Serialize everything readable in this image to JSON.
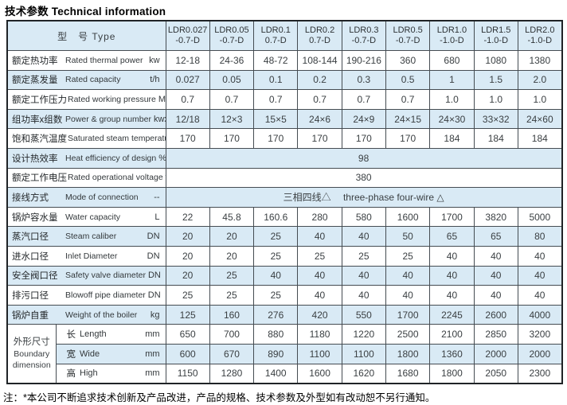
{
  "title": "技术参数 Technical information",
  "colors": {
    "row_tint": "#d9eaf5",
    "grid_border": "#454c52",
    "outer_border": "#1f2326",
    "text": "#3a3f42"
  },
  "table": {
    "type_header": "型　号  Type",
    "models": [
      {
        "line1": "LDR0.027",
        "line2": "-0.7-D"
      },
      {
        "line1": "LDR0.05",
        "line2": "-0.7-D"
      },
      {
        "line1": "LDR0.1",
        "line2": "0.7-D"
      },
      {
        "line1": "LDR0.2",
        "line2": "0.7-D"
      },
      {
        "line1": "LDR0.3",
        "line2": "-0.7-D"
      },
      {
        "line1": "LDR0.5",
        "line2": "-0.7-D"
      },
      {
        "line1": "LDR1.0",
        "line2": "-1.0-D"
      },
      {
        "line1": "LDR1.5",
        "line2": "-1.0-D"
      },
      {
        "line1": "LDR2.0",
        "line2": "-1.0-D"
      }
    ],
    "rows": [
      {
        "cn": "额定热功率",
        "en": "Rated thermal power",
        "unit": "kw",
        "values": [
          "12-18",
          "24-36",
          "48-72",
          "108-144",
          "190-216",
          "360",
          "680",
          "1080",
          "1380"
        ]
      },
      {
        "cn": "额定蒸发量",
        "en": "Rated capacity",
        "unit": "t/h",
        "values": [
          "0.027",
          "0.05",
          "0.1",
          "0.2",
          "0.3",
          "0.5",
          "1",
          "1.5",
          "2.0"
        ]
      },
      {
        "cn": "额定工作压力",
        "en": "Rated working pressure",
        "unit": "Mpa",
        "values": [
          "0.7",
          "0.7",
          "0.7",
          "0.7",
          "0.7",
          "0.7",
          "1.0",
          "1.0",
          "1.0"
        ]
      },
      {
        "cn": "组功率x组数",
        "en": "Power & group number",
        "unit": "kwxn",
        "values": [
          "12/18",
          "12×3",
          "15×5",
          "24×6",
          "24×9",
          "24×15",
          "24×30",
          "33×32",
          "24×60"
        ]
      },
      {
        "cn": "饱和蒸汽温度",
        "en": "Saturated steam temperature",
        "unit": "℃",
        "values": [
          "170",
          "170",
          "170",
          "170",
          "170",
          "170",
          "184",
          "184",
          "184"
        ]
      },
      {
        "cn": "设计热效率",
        "en": "Heat efficiency of design",
        "unit": "%",
        "span": "98"
      },
      {
        "cn": "额定工作电压",
        "en": "Rated operational voltage",
        "unit": "v",
        "span": "380"
      },
      {
        "cn": "接线方式",
        "en": "Mode of connection",
        "unit": "--",
        "span": "三相四线△　 three-phase four-wire △"
      },
      {
        "cn": "锅炉容水量",
        "en": "Water capacity",
        "unit": "L",
        "values": [
          "22",
          "45.8",
          "160.6",
          "280",
          "580",
          "1600",
          "1700",
          "3820",
          "5000"
        ]
      },
      {
        "cn": "蒸汽口径",
        "en": "Steam caliber",
        "unit": "DN",
        "values": [
          "20",
          "20",
          "25",
          "40",
          "40",
          "50",
          "65",
          "65",
          "80"
        ]
      },
      {
        "cn": "进水口径",
        "en": "Inlet Diameter",
        "unit": "DN",
        "values": [
          "20",
          "20",
          "25",
          "25",
          "25",
          "25",
          "40",
          "40",
          "40"
        ]
      },
      {
        "cn": "安全阀口径",
        "en": "Safety valve diameter",
        "unit": "DN",
        "values": [
          "20",
          "25",
          "40",
          "40",
          "40",
          "40",
          "40",
          "40",
          "40"
        ]
      },
      {
        "cn": "排污口径",
        "en": "Blowoff pipe diameter",
        "unit": "DN",
        "values": [
          "25",
          "25",
          "25",
          "40",
          "40",
          "40",
          "40",
          "40",
          "40"
        ]
      },
      {
        "cn": "锅炉自重",
        "en": "Weight of the boiler",
        "unit": "kg",
        "values": [
          "125",
          "160",
          "276",
          "420",
          "550",
          "1700",
          "2245",
          "2600",
          "4000"
        ]
      }
    ],
    "dimension_group": {
      "cn": "外形尺寸",
      "en_line1": "Boundary",
      "en_line2": "dimension",
      "rows": [
        {
          "cn": "长",
          "en": "Length",
          "unit": "mm",
          "values": [
            "650",
            "700",
            "880",
            "1180",
            "1220",
            "2500",
            "2100",
            "2850",
            "3200"
          ]
        },
        {
          "cn": "宽",
          "en": "Wide",
          "unit": "mm",
          "values": [
            "600",
            "670",
            "890",
            "1100",
            "1100",
            "1800",
            "1360",
            "2000",
            "2000"
          ]
        },
        {
          "cn": "高",
          "en": "High",
          "unit": "mm",
          "values": [
            "1150",
            "1280",
            "1400",
            "1600",
            "1620",
            "1680",
            "1800",
            "2050",
            "2300"
          ]
        }
      ]
    }
  },
  "footer_note": "注：*本公司不断追求技术创新及产品改进，产品的规格、技术参数及外型如有改动恕不另行通知。"
}
